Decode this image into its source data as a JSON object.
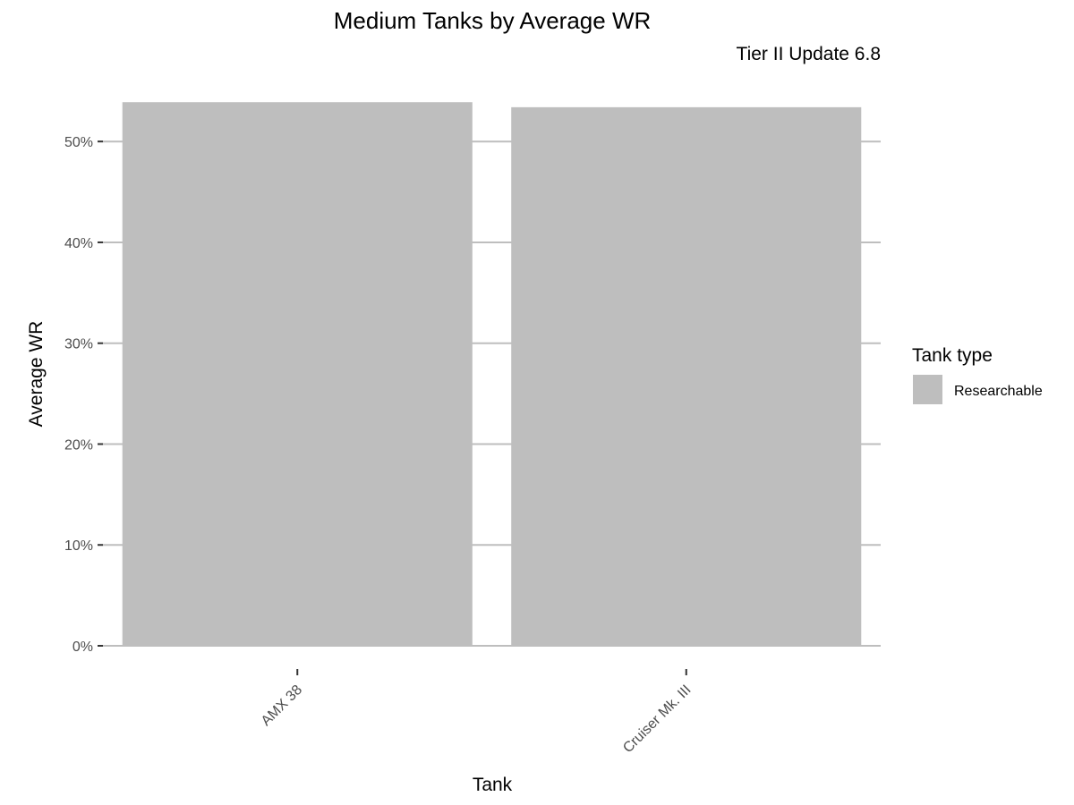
{
  "chart_data": {
    "type": "bar",
    "title": "Medium Tanks by Average WR",
    "subtitle": "Tier II Update 6.8",
    "xlabel": "Tank",
    "ylabel": "Average WR",
    "categories": [
      "AMX 38",
      "Cruiser Mk. III"
    ],
    "series": [
      {
        "name": "Researchable",
        "values": [
          0.539,
          0.534
        ]
      }
    ],
    "ylim": [
      0,
      0.54
    ],
    "yticks": [
      0,
      0.1,
      0.2,
      0.3,
      0.4,
      0.5
    ],
    "ytick_labels": [
      "0%",
      "10%",
      "20%",
      "30%",
      "40%",
      "50%"
    ],
    "grid": "horizontal major",
    "legend": {
      "title": "Tank type",
      "position": "right"
    },
    "colors": {
      "bar": "#bebebe",
      "grid": "#bebebe",
      "tick": "#333333"
    }
  }
}
